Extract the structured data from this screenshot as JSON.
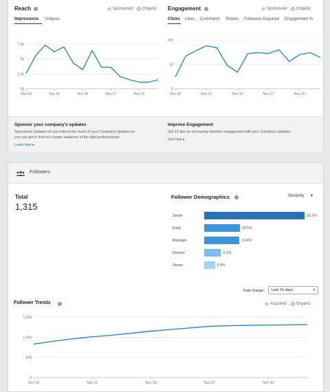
{
  "reach": {
    "title": "Reach",
    "legend": [
      "Sponsored",
      "Organic"
    ],
    "tabs": [
      "Impressions",
      "Uniques"
    ],
    "active_tab": "Impressions",
    "chart_data": {
      "type": "line",
      "x_ticks": [
        "Nov 18",
        "Nov 21",
        "Nov 24",
        "Nov 27",
        "Nov 30"
      ],
      "y_ticks": [
        "0k",
        "2.5k",
        "5k",
        "7.5k"
      ],
      "ylim": [
        0,
        9000
      ],
      "series": [
        {
          "name": "Organic",
          "values": [
            2600,
            5500,
            7300,
            6200,
            7000,
            4300,
            3200,
            6400,
            3600,
            3600,
            2000,
            1500,
            1100,
            1100,
            1500
          ]
        }
      ]
    }
  },
  "engagement": {
    "title": "Engagement",
    "legend": [
      "Sponsored",
      "Organic"
    ],
    "tabs": [
      "Clicks",
      "Likes",
      "Comments",
      "Shares",
      "Followers Acquired",
      "Engagement %"
    ],
    "active_tab": "Clicks",
    "chart_data": {
      "type": "line",
      "x_ticks": [
        "Nov 18",
        "Nov 21",
        "Nov 24",
        "Nov 27",
        "Nov 30"
      ],
      "y_ticks": [
        "0",
        "50",
        "100"
      ],
      "ylim": [
        0,
        110
      ],
      "series": [
        {
          "name": "Organic",
          "values": [
            24,
            67,
            78,
            88,
            84,
            48,
            34,
            72,
            74,
            72,
            80,
            56,
            70,
            74,
            64
          ]
        }
      ]
    }
  },
  "sponsor": {
    "title": "Sponsor your company's updates",
    "text_line1": "Sponsored Updates let you extend the reach of your Company Updates so",
    "text_line2": "you can get in front of a larger audience of the right professionals.",
    "link": "Learn how ▸"
  },
  "improve": {
    "title": "Improve Engagement",
    "text": "Get 15 tips on increasing member engagement with your Company Updates.",
    "link": "See how ▸"
  },
  "followers": {
    "section_title": "Followers",
    "total_label": "Total",
    "total_value": "1,315",
    "demographics": {
      "title": "Follower Demographics",
      "selector": "Seniority",
      "bars": [
        {
          "label": "Senior",
          "value": 55.2,
          "value_label": "55.2%",
          "color": "#2a72b8"
        },
        {
          "label": "Entry",
          "value": 19.5,
          "value_label": "19.5%",
          "color": "#3a95dc"
        },
        {
          "label": "Manager",
          "value": 19.4,
          "value_label": "19.4%",
          "color": "#3a95dc"
        },
        {
          "label": "Director",
          "value": 9.2,
          "value_label": "9.2%",
          "color": "#7dbdee"
        },
        {
          "label": "Owner",
          "value": 5.9,
          "value_label": "5.9%",
          "color": "#a6d2f3"
        }
      ]
    },
    "date_range_label": "Date Range:",
    "date_range_value": "Last 15 days"
  },
  "trends": {
    "title": "Follower Trends",
    "legend": [
      "Acquired",
      "Organic"
    ],
    "chart_data": {
      "type": "line",
      "x_ticks": [
        "Nov 18",
        "Nov 21",
        "Nov 24",
        "Nov 27",
        "Nov 30"
      ],
      "y_ticks": [
        "0",
        "500",
        "1,000",
        "1,500"
      ],
      "ylim": [
        0,
        1500
      ],
      "series": [
        {
          "name": "Organic",
          "values": [
            830,
            900,
            960,
            1010,
            1050,
            1100,
            1150,
            1190,
            1230,
            1270,
            1285,
            1295,
            1300,
            1305,
            1315
          ]
        }
      ]
    }
  },
  "colors": {
    "line": "#2a86d6",
    "sponsored": "#a9d4f0",
    "link": "#1d6aa8"
  }
}
